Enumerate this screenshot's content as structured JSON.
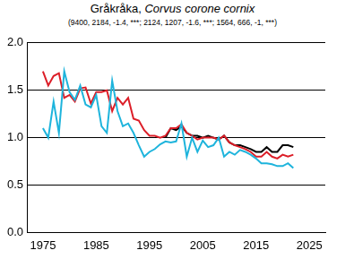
{
  "chart_data": {
    "type": "line",
    "title": "Gråkråka, Corvus corone cornix",
    "subtitle": "(9400, 2184, -1.4, ***; 2124, 1207, -1.6, ***; 1564, 666, -1, ***)",
    "x": [
      1975,
      1976,
      1977,
      1978,
      1979,
      1980,
      1981,
      1982,
      1983,
      1984,
      1985,
      1986,
      1987,
      1988,
      1989,
      1990,
      1991,
      1992,
      1993,
      1994,
      1995,
      1996,
      1997,
      1998,
      1999,
      2000,
      2001,
      2002,
      2003,
      2004,
      2005,
      2006,
      2007,
      2008,
      2009,
      2010,
      2011,
      2012,
      2013,
      2014,
      2015,
      2016,
      2017,
      2018,
      2019,
      2020,
      2021,
      2022
    ],
    "series": [
      {
        "color": "#1eb4dc",
        "values": [
          1.1,
          1.0,
          1.38,
          1.05,
          1.7,
          1.48,
          1.4,
          1.55,
          1.35,
          1.32,
          1.45,
          1.12,
          1.05,
          1.6,
          1.28,
          1.12,
          1.15,
          1.05,
          0.92,
          0.8,
          0.85,
          0.88,
          0.93,
          0.96,
          0.95,
          0.96,
          1.15,
          0.8,
          1.0,
          0.85,
          0.97,
          0.9,
          0.92,
          1.0,
          0.8,
          0.85,
          0.82,
          0.87,
          0.85,
          0.82,
          0.78,
          0.73,
          0.73,
          0.72,
          0.7,
          0.7,
          0.73,
          0.68
        ]
      },
      {
        "color": "#dc1e28",
        "values": [
          1.7,
          1.55,
          1.65,
          1.68,
          1.42,
          1.45,
          1.38,
          1.52,
          1.53,
          1.36,
          1.48,
          1.48,
          1.5,
          1.28,
          1.42,
          1.35,
          1.42,
          1.2,
          1.18,
          1.08,
          1.02,
          1.02,
          1.0,
          1.02,
          1.1,
          1.1,
          1.14,
          1.05,
          1.02,
          0.98,
          1.0,
          1.0,
          1.0,
          0.98,
          1.02,
          0.95,
          0.92,
          0.9,
          0.88,
          0.85,
          0.8,
          0.8,
          0.85,
          0.8,
          0.78,
          0.82,
          0.8,
          0.82
        ]
      },
      {
        "color": "#000000",
        "values": [
          null,
          null,
          null,
          null,
          null,
          null,
          null,
          null,
          null,
          null,
          null,
          null,
          null,
          null,
          null,
          null,
          null,
          null,
          null,
          null,
          null,
          null,
          null,
          1.0,
          1.1,
          1.08,
          1.12,
          1.05,
          1.02,
          1.02,
          1.0,
          1.02,
          1.0,
          0.98,
          1.02,
          0.95,
          0.92,
          0.92,
          0.9,
          0.88,
          0.85,
          0.85,
          0.9,
          0.85,
          0.85,
          0.92,
          0.92,
          0.9
        ]
      }
    ],
    "xlim": [
      1972,
      2028
    ],
    "xticks": [
      1975,
      1985,
      1995,
      2005,
      2015,
      2025
    ],
    "ylim": [
      0,
      2
    ],
    "yticks": [
      {
        "value": 0,
        "label": "0.0"
      },
      0.5,
      {
        "value": 1,
        "label": "1.0"
      },
      1.5,
      {
        "value": 2,
        "label": "2.0"
      }
    ],
    "grid": true
  }
}
